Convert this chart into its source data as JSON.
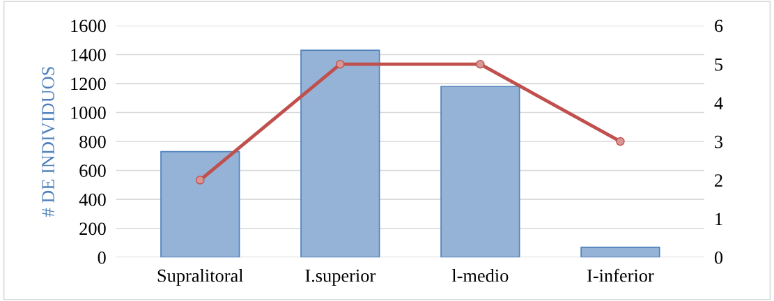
{
  "chart_data": {
    "type": "bar",
    "ylabel": "# DE INDIVIDUOS",
    "categories": [
      "Supralitoral",
      "I.superior",
      "l-medio",
      "I-inferior"
    ],
    "series": [
      {
        "color": "#95b3d7",
        "values": [
          730,
          1430,
          1180,
          70
        ]
      },
      {
        "type": "line",
        "axis": "y2",
        "color": "#c0504d",
        "marker": "circle",
        "values": [
          2,
          5,
          5,
          3
        ]
      }
    ],
    "ylim": [
      0,
      1600
    ],
    "yticks": [
      0,
      200,
      400,
      600,
      800,
      1000,
      1200,
      1400,
      1600
    ],
    "y2lim": [
      0,
      6
    ],
    "y2ticks": [
      0,
      1,
      2,
      3,
      4,
      5,
      6
    ],
    "grid": "y",
    "legend": false
  }
}
